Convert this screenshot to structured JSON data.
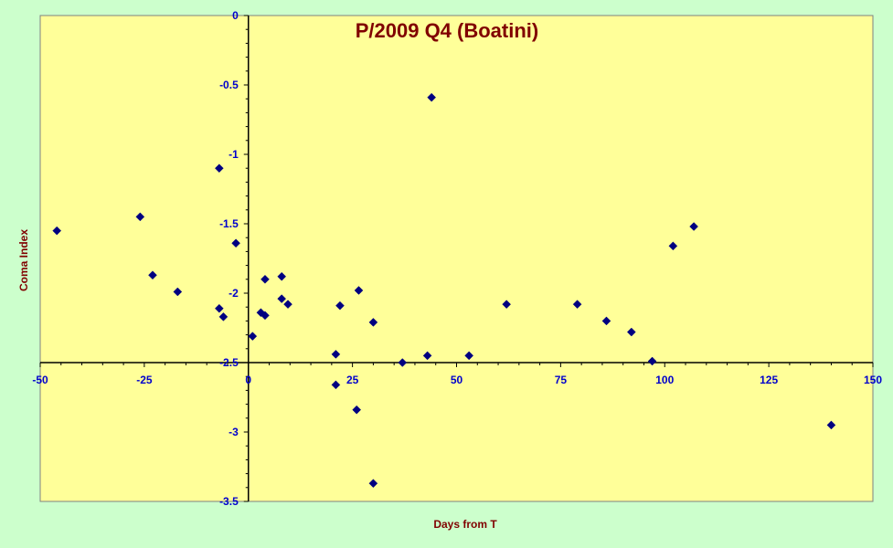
{
  "colors": {
    "page_background": "#ccffcc",
    "plot_background": "#ffff99",
    "axis_line": "#000000",
    "tick_label": "#0000cc",
    "title_text": "#800000",
    "marker": "#000080"
  },
  "chart_data": {
    "type": "scatter",
    "title": "P/2009 Q4 (Boatini)",
    "xlabel": "Days from T",
    "ylabel": "Coma Index",
    "xlim": [
      -50,
      150
    ],
    "ylim": [
      -3.5,
      0
    ],
    "x_ticks": [
      -50,
      -25,
      0,
      25,
      50,
      75,
      100,
      125,
      150
    ],
    "x_tick_labels": [
      "-50",
      "-25",
      "0",
      "25",
      "50",
      "75",
      "100",
      "125",
      "150"
    ],
    "y_ticks": [
      0,
      -0.5,
      -1,
      -1.5,
      -2,
      -2.5,
      -3,
      -3.5
    ],
    "y_tick_labels": [
      "0",
      "-0.5",
      "-1",
      "-1.5",
      "-2",
      "-2.5",
      "-3",
      "-3.5"
    ],
    "x_axis_crosses_at_y": -2.5,
    "y_axis_crosses_at_x": 0,
    "grid": false,
    "legend": false,
    "marker": "diamond",
    "points": [
      [
        -46,
        -1.55
      ],
      [
        -26,
        -1.45
      ],
      [
        -23,
        -1.87
      ],
      [
        -17,
        -1.99
      ],
      [
        -7,
        -1.1
      ],
      [
        -7,
        -2.11
      ],
      [
        -6,
        -2.17
      ],
      [
        -3,
        -1.64
      ],
      [
        1,
        -2.31
      ],
      [
        3,
        -2.14
      ],
      [
        4,
        -2.16
      ],
      [
        4,
        -1.9
      ],
      [
        8,
        -1.88
      ],
      [
        8,
        -2.04
      ],
      [
        9.5,
        -2.08
      ],
      [
        21,
        -2.44
      ],
      [
        21,
        -2.66
      ],
      [
        22,
        -2.09
      ],
      [
        26,
        -2.84
      ],
      [
        26.5,
        -1.98
      ],
      [
        30,
        -2.21
      ],
      [
        30,
        -3.37
      ],
      [
        37,
        -2.5
      ],
      [
        43,
        -2.45
      ],
      [
        44,
        -0.59
      ],
      [
        53,
        -2.45
      ],
      [
        62,
        -2.08
      ],
      [
        79,
        -2.08
      ],
      [
        86,
        -2.2
      ],
      [
        92,
        -2.28
      ],
      [
        97,
        -2.49
      ],
      [
        102,
        -1.66
      ],
      [
        107,
        -1.52
      ],
      [
        140,
        -2.95
      ]
    ]
  }
}
